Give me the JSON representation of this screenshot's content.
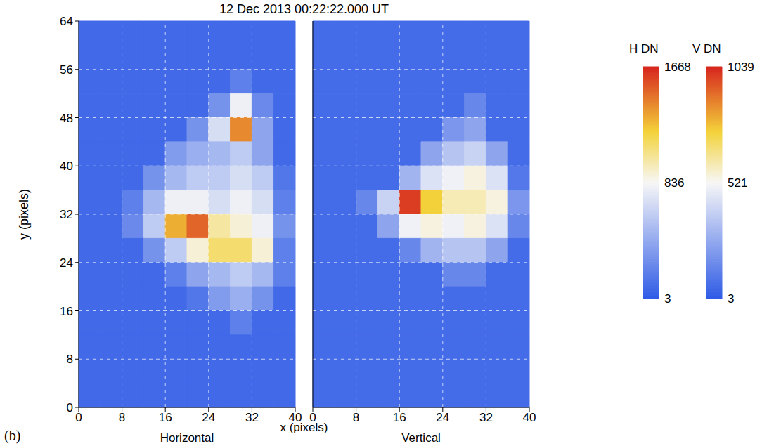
{
  "title": "12 Dec 2013 00:22:22.000 UT",
  "panel_label": "(b)",
  "x_label": "x (pixels)",
  "y_label": "y (pixels)",
  "chart_data": [
    {
      "type": "heatmap",
      "subtitle": "Horizontal",
      "xlim": [
        0,
        40
      ],
      "ylim": [
        0,
        64
      ],
      "xticks": [
        0,
        8,
        16,
        24,
        32,
        40
      ],
      "yticks": [
        0,
        8,
        16,
        24,
        32,
        40,
        48,
        56,
        64
      ],
      "grid": true,
      "x": [
        2,
        6,
        10,
        14,
        18,
        22,
        26,
        30,
        34,
        38
      ],
      "y": [
        62,
        58,
        54,
        50,
        46,
        42,
        38,
        34,
        30,
        26,
        22,
        18,
        14,
        10,
        6,
        2
      ],
      "z": [
        [
          80,
          80,
          80,
          80,
          80,
          80,
          80,
          80,
          80,
          80
        ],
        [
          80,
          80,
          80,
          80,
          80,
          80,
          80,
          80,
          80,
          80
        ],
        [
          80,
          80,
          80,
          80,
          80,
          80,
          80,
          200,
          80,
          80
        ],
        [
          80,
          80,
          80,
          80,
          80,
          80,
          300,
          800,
          250,
          80
        ],
        [
          80,
          80,
          80,
          80,
          80,
          300,
          700,
          1400,
          400,
          80
        ],
        [
          80,
          80,
          80,
          80,
          350,
          450,
          500,
          600,
          400,
          80
        ],
        [
          80,
          80,
          80,
          300,
          500,
          600,
          600,
          700,
          600,
          150
        ],
        [
          80,
          80,
          200,
          500,
          800,
          800,
          700,
          800,
          700,
          200
        ],
        [
          80,
          80,
          250,
          600,
          1300,
          1500,
          1000,
          900,
          800,
          300
        ],
        [
          80,
          80,
          80,
          300,
          600,
          900,
          1100,
          1100,
          900,
          200
        ],
        [
          80,
          80,
          80,
          80,
          200,
          400,
          500,
          600,
          500,
          200
        ],
        [
          80,
          80,
          80,
          80,
          80,
          150,
          350,
          450,
          300,
          80
        ],
        [
          80,
          80,
          80,
          80,
          80,
          80,
          80,
          200,
          80,
          80
        ],
        [
          80,
          80,
          80,
          80,
          80,
          80,
          80,
          80,
          80,
          80
        ],
        [
          80,
          80,
          80,
          80,
          80,
          80,
          80,
          80,
          80,
          80
        ],
        [
          80,
          80,
          80,
          80,
          80,
          80,
          80,
          80,
          80,
          80
        ]
      ],
      "colorbar": {
        "label": "H DN",
        "range": [
          3,
          1668
        ],
        "ticks": [
          3,
          836,
          1668
        ]
      }
    },
    {
      "type": "heatmap",
      "subtitle": "Vertical",
      "tick_labels": "x",
      "xlim": [
        0,
        40
      ],
      "ylim": [
        0,
        64
      ],
      "xticks": [
        0,
        8,
        16,
        24,
        32,
        40
      ],
      "yticks": [
        0,
        8,
        16,
        24,
        32,
        40,
        48,
        56,
        64
      ],
      "grid": true,
      "x": [
        2,
        6,
        10,
        14,
        18,
        22,
        26,
        30,
        34,
        38
      ],
      "y": [
        62,
        58,
        54,
        50,
        46,
        42,
        38,
        34,
        30,
        26,
        22,
        18,
        14,
        10,
        6,
        2
      ],
      "z": [
        [
          60,
          60,
          60,
          60,
          60,
          60,
          60,
          60,
          60,
          60
        ],
        [
          60,
          60,
          60,
          60,
          60,
          60,
          60,
          60,
          60,
          60
        ],
        [
          60,
          60,
          60,
          60,
          60,
          60,
          60,
          60,
          60,
          60
        ],
        [
          60,
          60,
          60,
          60,
          60,
          60,
          60,
          150,
          60,
          60
        ],
        [
          60,
          60,
          60,
          60,
          60,
          60,
          200,
          250,
          60,
          60
        ],
        [
          60,
          60,
          60,
          60,
          60,
          250,
          350,
          400,
          250,
          60
        ],
        [
          60,
          60,
          60,
          60,
          300,
          450,
          500,
          550,
          450,
          100
        ],
        [
          60,
          60,
          150,
          400,
          1000,
          750,
          600,
          600,
          550,
          200
        ],
        [
          60,
          60,
          60,
          250,
          500,
          550,
          500,
          550,
          450,
          150
        ],
        [
          60,
          60,
          60,
          60,
          150,
          300,
          350,
          350,
          250,
          60
        ],
        [
          60,
          60,
          60,
          60,
          60,
          60,
          150,
          150,
          60,
          60
        ],
        [
          60,
          60,
          60,
          60,
          60,
          60,
          60,
          60,
          60,
          60
        ],
        [
          60,
          60,
          60,
          60,
          60,
          60,
          60,
          60,
          60,
          60
        ],
        [
          60,
          60,
          60,
          60,
          60,
          60,
          60,
          60,
          60,
          60
        ],
        [
          60,
          60,
          60,
          60,
          60,
          60,
          60,
          60,
          60,
          60
        ],
        [
          60,
          60,
          60,
          60,
          60,
          60,
          60,
          60,
          60,
          60
        ]
      ],
      "colorbar": {
        "label": "V DN",
        "range": [
          3,
          1039
        ],
        "ticks": [
          3,
          521,
          1039
        ]
      }
    }
  ]
}
